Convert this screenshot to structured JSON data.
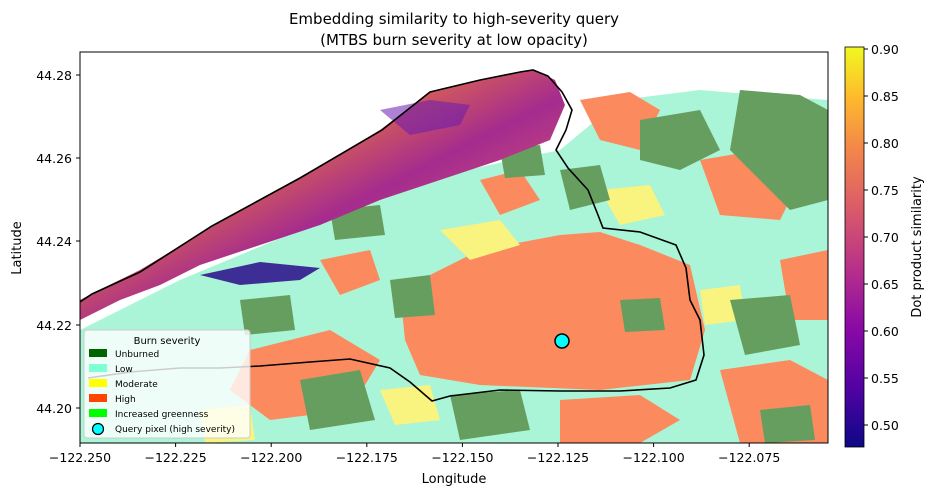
{
  "title": "Embedding similarity to high-severity query",
  "subtitle": "(MTBS burn severity at low opacity)",
  "xlabel": "Longitude",
  "ylabel": "Latitude",
  "x_ticks": [
    "−122.250",
    "−122.225",
    "−122.200",
    "−122.175",
    "−122.150",
    "−122.125",
    "−122.100",
    "−122.075"
  ],
  "y_ticks": [
    "44.28",
    "44.26",
    "44.24",
    "44.22",
    "44.20"
  ],
  "colorbar": {
    "label": "Dot product similarity",
    "ticks": [
      "0.90",
      "0.85",
      "0.80",
      "0.75",
      "0.70",
      "0.65",
      "0.60",
      "0.55",
      "0.50"
    ],
    "range": [
      0.475,
      0.905
    ]
  },
  "legend": {
    "title": "Burn severity",
    "items": [
      {
        "label": "Unburned",
        "color": "#006400"
      },
      {
        "label": "Low",
        "color": "#7fffd4"
      },
      {
        "label": "Moderate",
        "color": "#ffff00"
      },
      {
        "label": "High",
        "color": "#ff4500"
      },
      {
        "label": "Increased greenness",
        "color": "#00ff00"
      }
    ],
    "query_label": "Query pixel (high severity)",
    "query_color": "#00ffff"
  },
  "colors": {
    "unburned": "#659e5f",
    "low": "#aaf5d7",
    "moderate": "#f8f47f",
    "high": "#fb8a5e"
  }
}
